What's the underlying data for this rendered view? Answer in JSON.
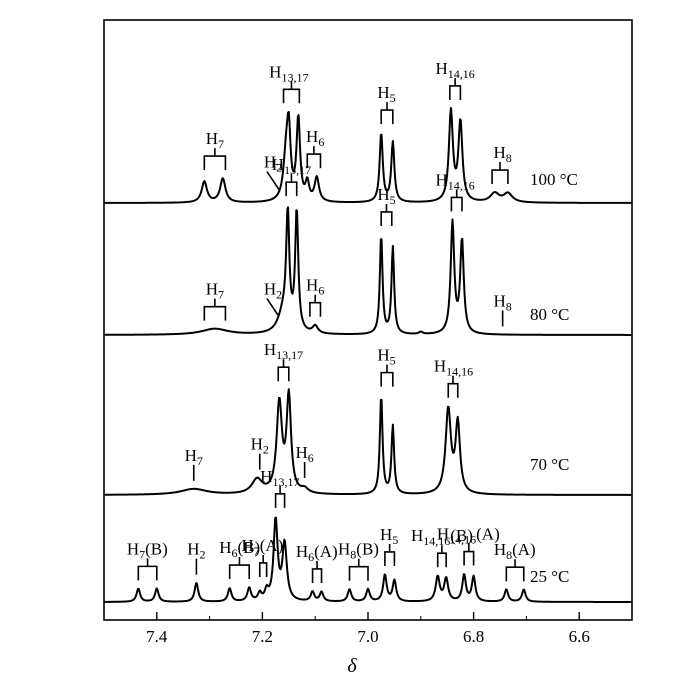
{
  "chart_data": {
    "type": "line",
    "xlabel": "δ",
    "ylabel": "",
    "xlim": [
      7.5,
      6.5
    ],
    "x_reversed": true,
    "xticks": [
      "7.4",
      "7.2",
      "7.0",
      "6.8",
      "6.6"
    ],
    "tick_values": [
      7.4,
      7.2,
      7.0,
      6.8,
      6.6
    ],
    "grid": false,
    "series": [
      {
        "name": "100 °C",
        "baseline_norm": 0.86,
        "peaks": [
          {
            "x": 7.31,
            "h": 0.14,
            "w": 0.006
          },
          {
            "x": 7.275,
            "h": 0.16,
            "w": 0.006
          },
          {
            "x": 7.155,
            "h": 0.3,
            "w": 0.006
          },
          {
            "x": 7.15,
            "h": 0.4,
            "w": 0.004
          },
          {
            "x": 7.132,
            "h": 0.55,
            "w": 0.004
          },
          {
            "x": 7.115,
            "h": 0.12,
            "w": 0.004
          },
          {
            "x": 7.097,
            "h": 0.16,
            "w": 0.005
          },
          {
            "x": 6.975,
            "h": 0.46,
            "w": 0.0035
          },
          {
            "x": 6.953,
            "h": 0.4,
            "w": 0.0035
          },
          {
            "x": 6.843,
            "h": 0.6,
            "w": 0.0045
          },
          {
            "x": 6.825,
            "h": 0.53,
            "w": 0.0045
          },
          {
            "x": 6.76,
            "h": 0.06,
            "w": 0.01
          },
          {
            "x": 6.735,
            "h": 0.06,
            "w": 0.01
          }
        ],
        "labels": [
          {
            "text": "H",
            "sub": "7",
            "x": 7.29,
            "bracket": [
              7.31,
              7.27
            ]
          },
          {
            "text": "H",
            "sub": "2",
            "x": 7.18,
            "slash": true
          },
          {
            "text": "H",
            "sub": "13,17",
            "x": 7.15,
            "bracket": [
              7.16,
              7.13
            ]
          },
          {
            "text": "H",
            "sub": "6",
            "x": 7.1,
            "bracket": [
              7.115,
              7.09
            ]
          },
          {
            "text": "H",
            "sub": "5",
            "x": 6.965,
            "bracket": [
              6.975,
              6.953
            ]
          },
          {
            "text": "H",
            "sub": "14,16",
            "x": 6.835,
            "bracket": [
              6.845,
              6.825
            ]
          },
          {
            "text": "H",
            "sub": "8",
            "x": 6.745,
            "bracket": [
              6.765,
              6.735
            ]
          }
        ]
      },
      {
        "name": "80 °C",
        "baseline_norm": 0.86,
        "peaks": [
          {
            "x": 7.29,
            "h": 0.04,
            "w": 0.03
          },
          {
            "x": 7.16,
            "h": 0.14,
            "w": 0.012
          },
          {
            "x": 7.152,
            "h": 0.74,
            "w": 0.0035
          },
          {
            "x": 7.135,
            "h": 0.8,
            "w": 0.0035
          },
          {
            "x": 7.1,
            "h": 0.05,
            "w": 0.006
          },
          {
            "x": 6.975,
            "h": 0.66,
            "w": 0.003
          },
          {
            "x": 6.953,
            "h": 0.58,
            "w": 0.003
          },
          {
            "x": 6.9,
            "h": 0.015,
            "w": 0.004
          },
          {
            "x": 6.84,
            "h": 0.74,
            "w": 0.004
          },
          {
            "x": 6.822,
            "h": 0.62,
            "w": 0.004
          }
        ],
        "labels": [
          {
            "text": "H",
            "sub": "7",
            "x": 7.29,
            "bracket": [
              7.31,
              7.27
            ]
          },
          {
            "text": "H",
            "sub": "2",
            "x": 7.18,
            "slash": true
          },
          {
            "text": "H",
            "sub": "13,17",
            "x": 7.145,
            "bracket": [
              7.155,
              7.135
            ]
          },
          {
            "text": "H",
            "sub": "6",
            "x": 7.1,
            "bracket": [
              7.11,
              7.09
            ]
          },
          {
            "text": "H",
            "sub": "5",
            "x": 6.965,
            "bracket": [
              6.975,
              6.955
            ]
          },
          {
            "text": "H",
            "sub": "14,16",
            "x": 6.835,
            "bracket": [
              6.842,
              6.822
            ]
          },
          {
            "text": "H",
            "sub": "8",
            "x": 6.745,
            "tick": true
          }
        ]
      },
      {
        "name": "70 °C",
        "baseline_norm": 0.86,
        "peaks": [
          {
            "x": 7.33,
            "h": 0.04,
            "w": 0.03
          },
          {
            "x": 7.21,
            "h": 0.1,
            "w": 0.012
          },
          {
            "x": 7.168,
            "h": 0.62,
            "w": 0.006
          },
          {
            "x": 7.15,
            "h": 0.66,
            "w": 0.005
          },
          {
            "x": 7.12,
            "h": 0.03,
            "w": 0.008
          },
          {
            "x": 6.975,
            "h": 0.68,
            "w": 0.003
          },
          {
            "x": 6.953,
            "h": 0.47,
            "w": 0.003
          },
          {
            "x": 6.848,
            "h": 0.58,
            "w": 0.006
          },
          {
            "x": 6.83,
            "h": 0.48,
            "w": 0.005
          }
        ],
        "labels": [
          {
            "text": "H",
            "sub": "7",
            "x": 7.33,
            "tick": true
          },
          {
            "text": "H",
            "sub": "2",
            "x": 7.205,
            "tick": true
          },
          {
            "text": "H",
            "sub": "13,17",
            "x": 7.16,
            "bracket": [
              7.17,
              7.15
            ]
          },
          {
            "text": "H",
            "sub": "6",
            "x": 7.12,
            "tick": true
          },
          {
            "text": "H",
            "sub": "5",
            "x": 6.965,
            "bracket": [
              6.975,
              6.953
            ]
          },
          {
            "text": "H",
            "sub": "14,16",
            "x": 6.838,
            "bracket": [
              6.848,
              6.83
            ]
          }
        ]
      },
      {
        "name": "25 °C",
        "baseline_norm": 0.86,
        "peaks": [
          {
            "x": 7.435,
            "h": 0.14,
            "w": 0.004
          },
          {
            "x": 7.4,
            "h": 0.14,
            "w": 0.004
          },
          {
            "x": 7.325,
            "h": 0.2,
            "w": 0.004
          },
          {
            "x": 7.262,
            "h": 0.14,
            "w": 0.004
          },
          {
            "x": 7.225,
            "h": 0.14,
            "w": 0.004
          },
          {
            "x": 7.205,
            "h": 0.08,
            "w": 0.004
          },
          {
            "x": 7.192,
            "h": 0.1,
            "w": 0.004
          },
          {
            "x": 7.175,
            "h": 0.85,
            "w": 0.0045
          },
          {
            "x": 7.158,
            "h": 0.6,
            "w": 0.005
          },
          {
            "x": 7.105,
            "h": 0.1,
            "w": 0.004
          },
          {
            "x": 7.088,
            "h": 0.1,
            "w": 0.004
          },
          {
            "x": 7.035,
            "h": 0.13,
            "w": 0.004
          },
          {
            "x": 7.0,
            "h": 0.13,
            "w": 0.004
          },
          {
            "x": 6.968,
            "h": 0.28,
            "w": 0.004
          },
          {
            "x": 6.95,
            "h": 0.22,
            "w": 0.004
          },
          {
            "x": 6.868,
            "h": 0.26,
            "w": 0.0045
          },
          {
            "x": 6.852,
            "h": 0.24,
            "w": 0.0045
          },
          {
            "x": 6.818,
            "h": 0.28,
            "w": 0.004
          },
          {
            "x": 6.8,
            "h": 0.26,
            "w": 0.004
          },
          {
            "x": 6.738,
            "h": 0.13,
            "w": 0.004
          },
          {
            "x": 6.705,
            "h": 0.13,
            "w": 0.004
          }
        ],
        "labels": [
          {
            "text": "H",
            "sub": "7",
            "suffix": "(B)",
            "x": 7.418,
            "bracket": [
              7.435,
              7.4
            ]
          },
          {
            "text": "H",
            "sub": "2",
            "x": 7.325,
            "tick": true
          },
          {
            "text": "H",
            "sub": "6",
            "suffix": "(B)",
            "x": 7.243,
            "bracket": [
              7.262,
              7.225
            ]
          },
          {
            "text": "H",
            "sub": "7",
            "suffix": "(A)",
            "x": 7.2,
            "bracket": [
              7.205,
              7.192
            ]
          },
          {
            "text": "H",
            "sub": "13,17",
            "x": 7.167,
            "bracket": [
              7.175,
              7.158
            ]
          },
          {
            "text": "H",
            "sub": "6",
            "suffix": "(A)",
            "x": 7.097,
            "bracket": [
              7.105,
              7.088
            ]
          },
          {
            "text": "H",
            "sub": "8",
            "suffix": "(B)",
            "x": 7.018,
            "bracket": [
              7.035,
              7.0
            ]
          },
          {
            "text": "H",
            "sub": "5",
            "x": 6.96,
            "bracket": [
              6.968,
              6.95
            ]
          },
          {
            "text": "H",
            "sub": "14,16",
            "suffix": "(B)",
            "x": 6.86,
            "bracket": [
              6.868,
              6.852
            ]
          },
          {
            "text": "H",
            "sub": "14,16",
            "suffix": "(A)",
            "x": 6.81,
            "bracket": [
              6.818,
              6.8
            ]
          },
          {
            "text": "H",
            "sub": "8",
            "suffix": "(A)",
            "x": 6.722,
            "bracket": [
              6.738,
              6.705
            ]
          }
        ]
      }
    ]
  }
}
